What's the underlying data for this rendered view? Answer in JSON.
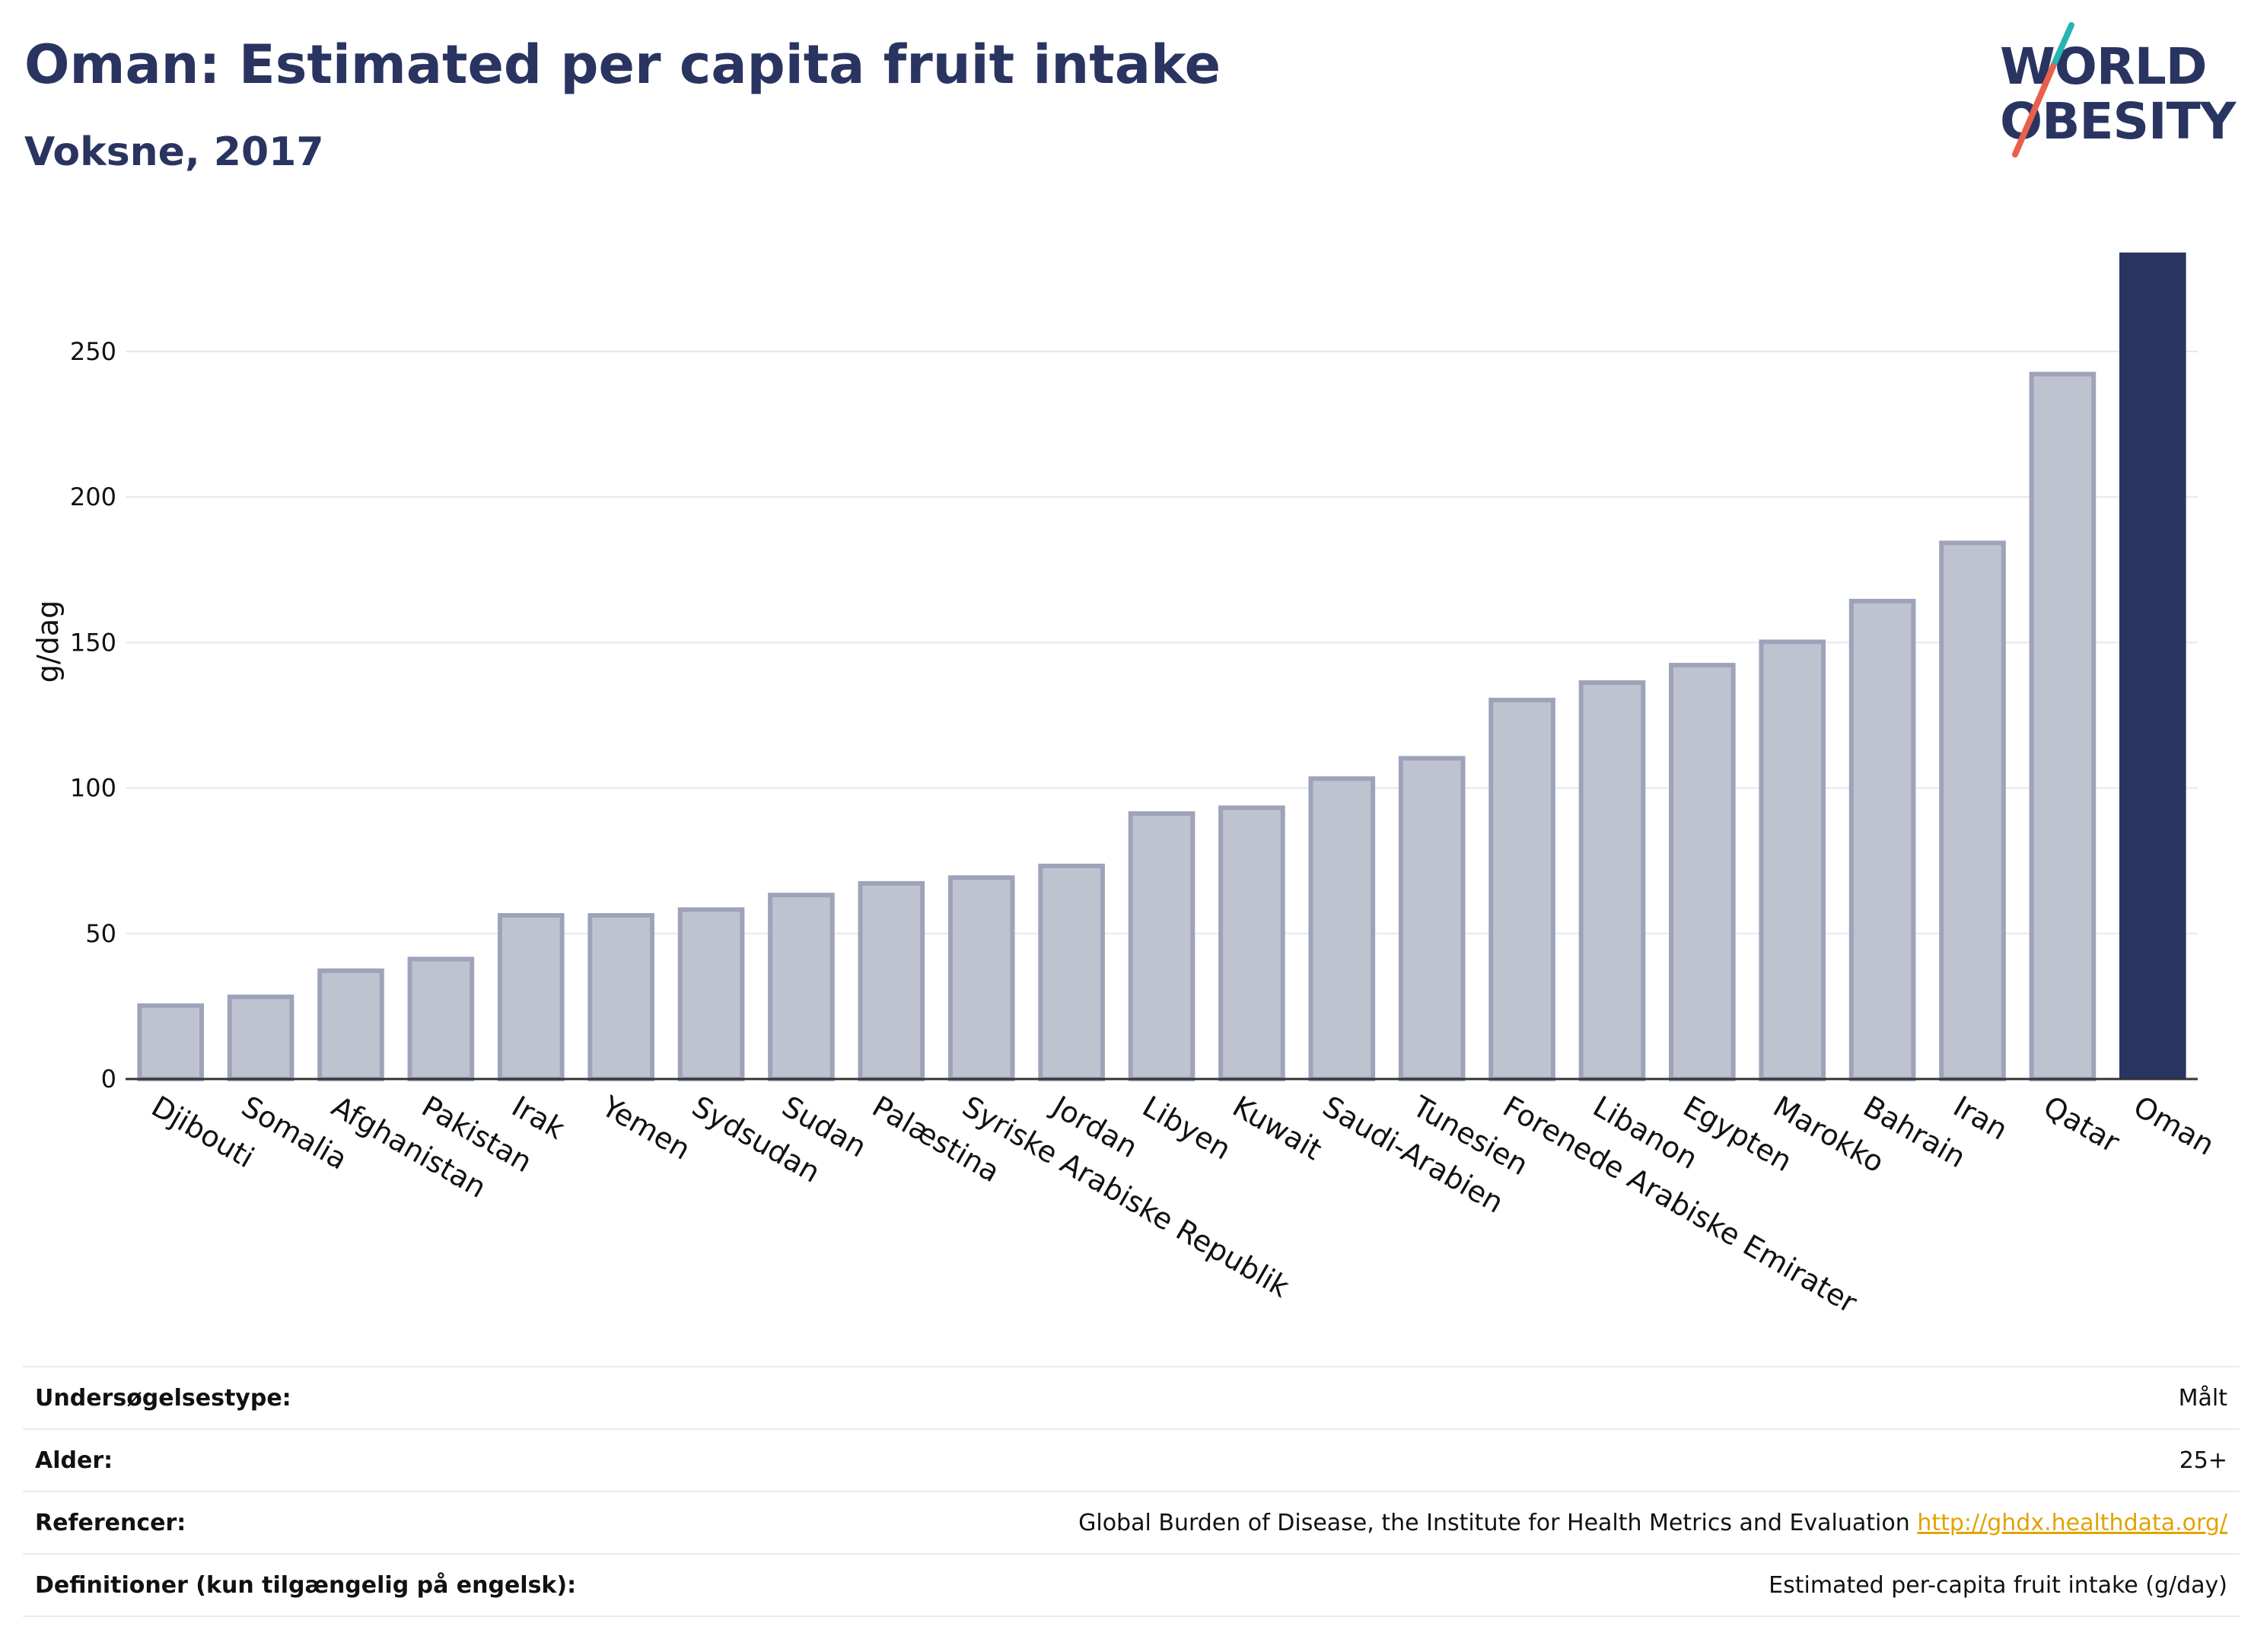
{
  "header": {
    "title": "Oman: Estimated per capita fruit intake",
    "subtitle": "Voksne, 2017"
  },
  "logo": {
    "line1": "WORLD",
    "line2": "OBESITY",
    "slash_colors": [
      "#2ab3b3",
      "#e8604c"
    ]
  },
  "colors": {
    "highlight": "#2a3461",
    "bar_fill": "#bfc3d0",
    "bar_border": "#9ea3ba",
    "grid": "#e6e8ec",
    "axis_text": "#111111"
  },
  "chart_data": {
    "type": "bar",
    "ylabel": "g/dag",
    "ylim": [
      0,
      285
    ],
    "yticks": [
      0,
      50,
      100,
      150,
      200,
      250
    ],
    "grid": true,
    "highlight_category": "Oman",
    "categories": [
      "Djibouti",
      "Somalia",
      "Afghanistan",
      "Pakistan",
      "Irak",
      "Yemen",
      "Sydsudan",
      "Sudan",
      "Palæstina",
      "Syriske Arabiske Republik",
      "Jordan",
      "Libyen",
      "Kuwait",
      "Saudi-Arabien",
      "Tunesien",
      "Forenede Arabiske Emirater",
      "Libanon",
      "Egypten",
      "Marokko",
      "Bahrain",
      "Iran",
      "Qatar",
      "Oman"
    ],
    "values": [
      26,
      29,
      38,
      42,
      57,
      57,
      59,
      64,
      68,
      70,
      74,
      92,
      94,
      104,
      111,
      131,
      137,
      143,
      151,
      165,
      185,
      243,
      284
    ]
  },
  "info": {
    "rows": [
      {
        "key": "Undersøgelsestype:",
        "value": "Målt"
      },
      {
        "key": "Alder:",
        "value": "25+"
      },
      {
        "key": "Referencer:",
        "value": "Global Burden of Disease, the Institute for Health Metrics and Evaluation",
        "link": "http://ghdx.healthdata.org/"
      },
      {
        "key": "Definitioner (kun tilgængelig på engelsk):",
        "value": "Estimated per-capita fruit intake (g/day)"
      }
    ]
  }
}
